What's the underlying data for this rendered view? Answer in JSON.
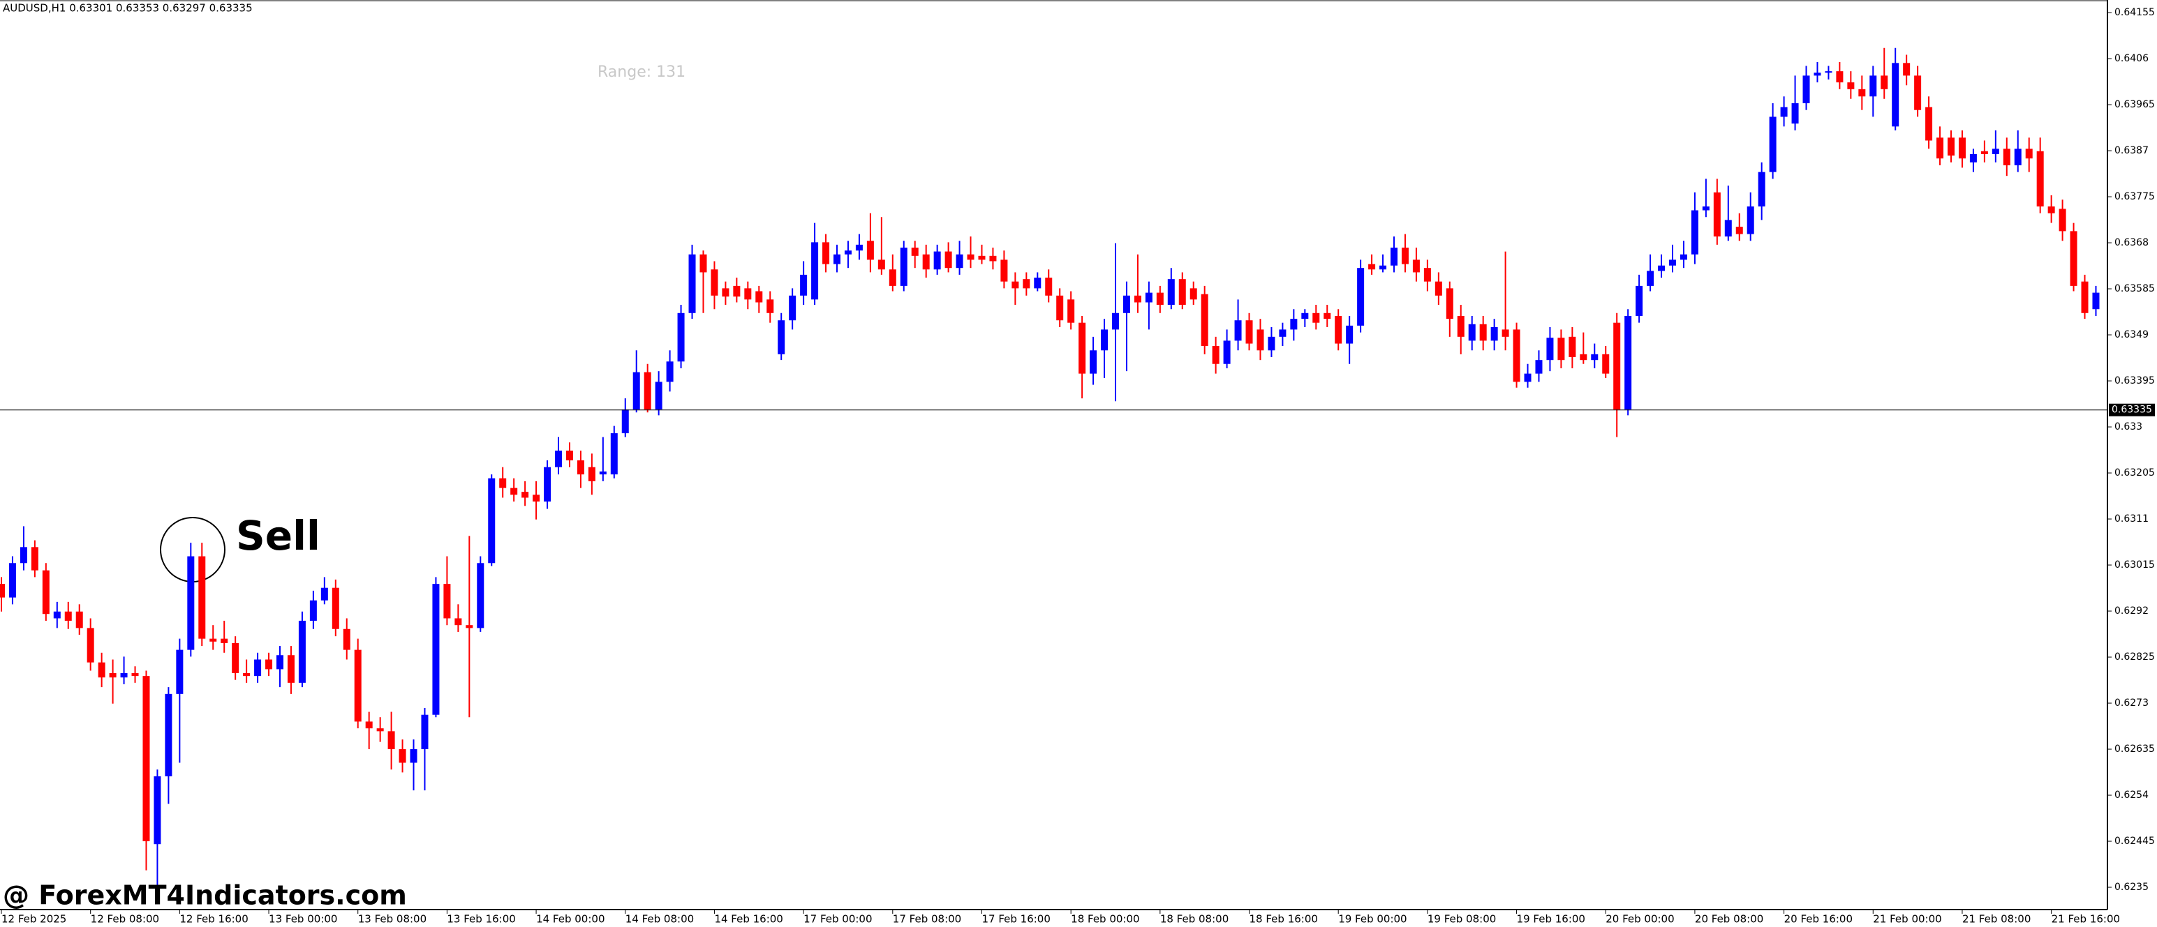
{
  "chart_data": {
    "type": "candlestick",
    "header": "AUDUSD,H1  0.63301 0.63353 0.63297 0.63335",
    "range_text": "Range: 131",
    "annotation": "Sell",
    "watermark": "@ ForexMT4Indicators.com",
    "up_color": "#0000ff",
    "down_color": "#ff0000",
    "current_price": 0.63335,
    "ylim": [
      0.62304,
      0.64181
    ],
    "yticks": [
      0.64155,
      0.6406,
      0.63965,
      0.6387,
      0.63775,
      0.6368,
      0.63585,
      0.6349,
      0.63395,
      0.633,
      0.63205,
      0.6311,
      0.63015,
      0.6292,
      0.62825,
      0.6273,
      0.62635,
      0.6254,
      0.62445,
      0.6235
    ],
    "categories": [
      "12 Feb 2025",
      null,
      null,
      null,
      null,
      null,
      null,
      null,
      "12 Feb 08:00",
      null,
      null,
      null,
      null,
      null,
      null,
      null,
      "12 Feb 16:00",
      null,
      null,
      null,
      null,
      null,
      null,
      null,
      "13 Feb 00:00",
      null,
      null,
      null,
      null,
      null,
      null,
      null,
      "13 Feb 08:00",
      null,
      null,
      null,
      null,
      null,
      null,
      null,
      "13 Feb 16:00",
      null,
      null,
      null,
      null,
      null,
      null,
      null,
      "14 Feb 00:00",
      null,
      null,
      null,
      null,
      null,
      null,
      null,
      "14 Feb 08:00",
      null,
      null,
      null,
      null,
      null,
      null,
      null,
      "14 Feb 16:00",
      null,
      null,
      null,
      null,
      null,
      null,
      null,
      "17 Feb 00:00",
      null,
      null,
      null,
      null,
      null,
      null,
      null,
      "17 Feb 08:00",
      null,
      null,
      null,
      null,
      null,
      null,
      null,
      "17 Feb 16:00",
      null,
      null,
      null,
      null,
      null,
      null,
      null,
      "18 Feb 00:00",
      null,
      null,
      null,
      null,
      null,
      null,
      null,
      "18 Feb 08:00",
      null,
      null,
      null,
      null,
      null,
      null,
      null,
      "18 Feb 16:00",
      null,
      null,
      null,
      null,
      null,
      null,
      null,
      "19 Feb 00:00",
      null,
      null,
      null,
      null,
      null,
      null,
      null,
      "19 Feb 08:00",
      null,
      null,
      null,
      null,
      null,
      null,
      null,
      "19 Feb 16:00",
      null,
      null,
      null,
      null,
      null,
      null,
      null,
      "20 Feb 00:00",
      null,
      null,
      null,
      null,
      null,
      null,
      null,
      "20 Feb 08:00",
      null,
      null,
      null,
      null,
      null,
      null,
      null,
      "20 Feb 16:00",
      null,
      null,
      null,
      null,
      null,
      null,
      null,
      "21 Feb 00:00",
      null,
      null,
      null,
      null,
      null,
      null,
      null,
      "21 Feb 08:00",
      null,
      null,
      null,
      null,
      null,
      null,
      null,
      "21 Feb 16:00",
      null,
      null,
      null,
      null
    ],
    "open": [
      0.62976,
      0.62948,
      0.63019,
      0.63052,
      0.63004,
      0.62905,
      0.62919,
      0.62919,
      0.62885,
      0.62814,
      0.62792,
      0.62783,
      0.62792,
      0.62786,
      0.62439,
      0.62579,
      0.62749,
      0.6284,
      0.63033,
      0.62863,
      0.62863,
      0.62854,
      0.62792,
      0.62786,
      0.6282,
      0.628,
      0.62829,
      0.62772,
      0.629,
      0.62942,
      0.62968,
      0.62883,
      0.6284,
      0.62692,
      0.62678,
      0.62672,
      0.62635,
      0.62607,
      0.62635,
      0.62706,
      0.62976,
      0.62905,
      0.62891,
      0.62885,
      0.63019,
      0.63194,
      0.63174,
      0.63166,
      0.6316,
      0.63146,
      0.63217,
      0.63251,
      0.63231,
      0.63217,
      0.63202,
      0.63202,
      0.63287,
      0.63336,
      0.63413,
      0.63336,
      0.63393,
      0.63435,
      0.63535,
      0.63656,
      0.63625,
      0.63586,
      0.63591,
      0.63586,
      0.6358,
      0.63563,
      0.6345,
      0.6352,
      0.63571,
      0.63563,
      0.63681,
      0.63636,
      0.63656,
      0.63664,
      0.63684,
      0.63645,
      0.63625,
      0.63591,
      0.6367,
      0.63656,
      0.63625,
      0.63662,
      0.63628,
      0.63656,
      0.63653,
      0.63653,
      0.63645,
      0.636,
      0.63605,
      0.63586,
      0.63608,
      0.63571,
      0.63563,
      0.63515,
      0.6341,
      0.63458,
      0.63501,
      0.63535,
      0.63571,
      0.63557,
      0.63577,
      0.63552,
      0.63605,
      0.63586,
      0.63574,
      0.63467,
      0.6343,
      0.63478,
      0.6352,
      0.63501,
      0.63458,
      0.63486,
      0.63501,
      0.63523,
      0.63535,
      0.63535,
      0.63529,
      0.63472,
      0.63509,
      0.63636,
      0.63625,
      0.63633,
      0.6367,
      0.63645,
      0.63628,
      0.636,
      0.63586,
      0.63529,
      0.63478,
      0.63512,
      0.63478,
      0.63501,
      0.63501,
      0.63393,
      0.6341,
      0.63438,
      0.63484,
      0.63486,
      0.6345,
      0.63438,
      0.6345,
      0.63515,
      0.63336,
      0.63529,
      0.63591,
      0.63622,
      0.63633,
      0.63645,
      0.63656,
      0.63747,
      0.63784,
      0.63693,
      0.63713,
      0.63698,
      0.63755,
      0.63826,
      0.6394,
      0.63926,
      0.63968,
      0.64025,
      0.64031,
      0.64034,
      0.64011,
      0.63997,
      0.63982,
      0.64025,
      0.6392,
      0.64051,
      0.64025,
      0.6396,
      0.63897,
      0.63897,
      0.63897,
      0.63846,
      0.63869,
      0.63863,
      0.63874,
      0.6384,
      0.63874,
      0.63869,
      0.63755,
      0.6375,
      0.63704,
      0.636,
      0.63543
    ],
    "high": [
      0.6299,
      0.63033,
      0.63095,
      0.63066,
      0.63019,
      0.62939,
      0.62939,
      0.62934,
      0.62905,
      0.62834,
      0.6282,
      0.62826,
      0.62806,
      0.62797,
      0.62593,
      0.62763,
      0.62863,
      0.63061,
      0.63061,
      0.62891,
      0.629,
      0.62868,
      0.6282,
      0.62834,
      0.62834,
      0.62848,
      0.62848,
      0.62919,
      0.62962,
      0.6299,
      0.62985,
      0.62905,
      0.62863,
      0.62712,
      0.62701,
      0.62712,
      0.62655,
      0.62655,
      0.6272,
      0.6299,
      0.63033,
      0.62934,
      0.63075,
      0.63033,
      0.63202,
      0.63217,
      0.63194,
      0.63188,
      0.63188,
      0.63231,
      0.63279,
      0.63268,
      0.63251,
      0.63245,
      0.63279,
      0.63302,
      0.63359,
      0.63458,
      0.6343,
      0.63415,
      0.63458,
      0.63552,
      0.63676,
      0.63664,
      0.63642,
      0.636,
      0.63608,
      0.636,
      0.63591,
      0.6358,
      0.63535,
      0.63586,
      0.63642,
      0.63721,
      0.63698,
      0.63676,
      0.63684,
      0.63698,
      0.63741,
      0.63733,
      0.63656,
      0.63684,
      0.63684,
      0.63676,
      0.63676,
      0.63681,
      0.63684,
      0.63693,
      0.63676,
      0.6367,
      0.63664,
      0.63619,
      0.63619,
      0.63619,
      0.63625,
      0.63586,
      0.6358,
      0.63529,
      0.63486,
      0.63523,
      0.63679,
      0.636,
      0.63656,
      0.636,
      0.63591,
      0.63628,
      0.63619,
      0.636,
      0.63591,
      0.63486,
      0.63501,
      0.63563,
      0.63535,
      0.63523,
      0.63506,
      0.63515,
      0.63543,
      0.63543,
      0.63552,
      0.63552,
      0.63543,
      0.63529,
      0.63645,
      0.63656,
      0.63656,
      0.63693,
      0.63698,
      0.6367,
      0.63645,
      0.63619,
      0.636,
      0.63552,
      0.63529,
      0.63529,
      0.63523,
      0.63662,
      0.63515,
      0.6343,
      0.63458,
      0.63506,
      0.63501,
      0.63506,
      0.63495,
      0.63472,
      0.63467,
      0.63535,
      0.63543,
      0.63614,
      0.63656,
      0.63656,
      0.63676,
      0.63684,
      0.63784,
      0.63812,
      0.63812,
      0.63798,
      0.63741,
      0.63784,
      0.63846,
      0.63968,
      0.63982,
      0.64025,
      0.64045,
      0.64053,
      0.64045,
      0.64053,
      0.64034,
      0.64025,
      0.64045,
      0.64082,
      0.64082,
      0.64068,
      0.64045,
      0.63982,
      0.6392,
      0.63912,
      0.63912,
      0.63874,
      0.63891,
      0.63912,
      0.63897,
      0.63912,
      0.63897,
      0.63897,
      0.63778,
      0.63769,
      0.63721,
      0.63614,
      0.63591
    ],
    "low": [
      0.62919,
      0.62934,
      0.63004,
      0.6299,
      0.629,
      0.62885,
      0.62883,
      0.62871,
      0.62797,
      0.62763,
      0.62729,
      0.62769,
      0.62772,
      0.62385,
      0.62351,
      0.62522,
      0.62607,
      0.62826,
      0.62848,
      0.6284,
      0.62834,
      0.62778,
      0.62772,
      0.62772,
      0.62786,
      0.62763,
      0.62749,
      0.62763,
      0.62883,
      0.62934,
      0.62868,
      0.6282,
      0.62678,
      0.62635,
      0.6265,
      0.62593,
      0.62587,
      0.6255,
      0.6255,
      0.62701,
      0.62891,
      0.62877,
      0.62701,
      0.62877,
      0.63013,
      0.63154,
      0.63146,
      0.63137,
      0.63109,
      0.63131,
      0.63202,
      0.63217,
      0.63174,
      0.6316,
      0.63188,
      0.63194,
      0.63279,
      0.6333,
      0.6333,
      0.63324,
      0.63373,
      0.63421,
      0.63523,
      0.63535,
      0.63543,
      0.63552,
      0.63557,
      0.63543,
      0.63535,
      0.63515,
      0.63438,
      0.63501,
      0.63552,
      0.63552,
      0.63619,
      0.63619,
      0.63628,
      0.63645,
      0.63619,
      0.63614,
      0.6358,
      0.6358,
      0.63628,
      0.63608,
      0.63614,
      0.63619,
      0.63614,
      0.63628,
      0.63636,
      0.63625,
      0.63586,
      0.63552,
      0.63571,
      0.6358,
      0.63557,
      0.63506,
      0.63501,
      0.63359,
      0.63387,
      0.63401,
      0.63353,
      0.63415,
      0.63535,
      0.63501,
      0.63535,
      0.63543,
      0.63543,
      0.63552,
      0.6345,
      0.6341,
      0.63421,
      0.63458,
      0.63458,
      0.63438,
      0.63444,
      0.63467,
      0.63478,
      0.63506,
      0.63501,
      0.63506,
      0.63458,
      0.6343,
      0.63495,
      0.63614,
      0.63619,
      0.63619,
      0.63619,
      0.636,
      0.6358,
      0.63552,
      0.63486,
      0.6345,
      0.63458,
      0.63458,
      0.63458,
      0.63458,
      0.63381,
      0.63381,
      0.63393,
      0.63415,
      0.63421,
      0.63421,
      0.6343,
      0.63421,
      0.63401,
      0.63279,
      0.63324,
      0.63515,
      0.6358,
      0.63608,
      0.63619,
      0.63628,
      0.63636,
      0.63733,
      0.63676,
      0.63684,
      0.63684,
      0.63684,
      0.63727,
      0.63812,
      0.6392,
      0.63912,
      0.63954,
      0.64011,
      0.64017,
      0.63997,
      0.63977,
      0.63954,
      0.6394,
      0.63977,
      0.63912,
      0.64005,
      0.6394,
      0.63874,
      0.6384,
      0.63846,
      0.63835,
      0.63826,
      0.63846,
      0.63846,
      0.63818,
      0.63826,
      0.63826,
      0.63741,
      0.63721,
      0.63684,
      0.6358,
      0.63523,
      0.63529
    ],
    "close": [
      0.62948,
      0.63019,
      0.63052,
      0.63004,
      0.62914,
      0.62919,
      0.629,
      0.62885,
      0.62814,
      0.62783,
      0.62783,
      0.62792,
      0.62786,
      0.62445,
      0.62579,
      0.62749,
      0.6284,
      0.63033,
      0.62863,
      0.62857,
      0.62854,
      0.62792,
      0.62786,
      0.6282,
      0.628,
      0.62829,
      0.62772,
      0.629,
      0.62942,
      0.62968,
      0.62883,
      0.6284,
      0.62692,
      0.62678,
      0.62672,
      0.62635,
      0.62607,
      0.62635,
      0.62706,
      0.62976,
      0.62905,
      0.62891,
      0.62885,
      0.63019,
      0.63194,
      0.63174,
      0.6316,
      0.63154,
      0.63146,
      0.63217,
      0.63251,
      0.63231,
      0.63202,
      0.63188,
      0.63208,
      0.63287,
      0.63336,
      0.63413,
      0.63336,
      0.63393,
      0.63435,
      0.63535,
      0.63656,
      0.63619,
      0.63571,
      0.63569,
      0.63569,
      0.63563,
      0.63557,
      0.63535,
      0.6352,
      0.63571,
      0.63614,
      0.63681,
      0.63636,
      0.63656,
      0.63664,
      0.63676,
      0.63645,
      0.63625,
      0.63591,
      0.6367,
      0.63653,
      0.63625,
      0.63662,
      0.63628,
      0.63656,
      0.63645,
      0.63645,
      0.63642,
      0.636,
      0.63586,
      0.63586,
      0.63608,
      0.63571,
      0.6352,
      0.63515,
      0.6341,
      0.63458,
      0.63501,
      0.63535,
      0.63571,
      0.63557,
      0.63577,
      0.63552,
      0.63605,
      0.63552,
      0.63563,
      0.63467,
      0.6343,
      0.63478,
      0.6352,
      0.63472,
      0.63458,
      0.63486,
      0.63501,
      0.63523,
      0.63535,
      0.63515,
      0.63523,
      0.63472,
      0.63509,
      0.63628,
      0.63625,
      0.63633,
      0.6367,
      0.63636,
      0.63619,
      0.636,
      0.63571,
      0.63523,
      0.63486,
      0.63512,
      0.63478,
      0.63506,
      0.63486,
      0.63393,
      0.6341,
      0.63438,
      0.63484,
      0.63438,
      0.63444,
      0.63438,
      0.6345,
      0.6341,
      0.63336,
      0.63529,
      0.63591,
      0.63622,
      0.63633,
      0.63645,
      0.63656,
      0.63747,
      0.63755,
      0.63693,
      0.63727,
      0.63698,
      0.63755,
      0.63826,
      0.6394,
      0.6396,
      0.63968,
      0.64025,
      0.64031,
      0.64034,
      0.64011,
      0.63997,
      0.63982,
      0.64025,
      0.63997,
      0.64051,
      0.64025,
      0.63954,
      0.63891,
      0.63854,
      0.6386,
      0.63854,
      0.63863,
      0.63863,
      0.63874,
      0.6384,
      0.63874,
      0.63854,
      0.63755,
      0.63741,
      0.63704,
      0.63591,
      0.63535,
      0.63577
    ]
  }
}
